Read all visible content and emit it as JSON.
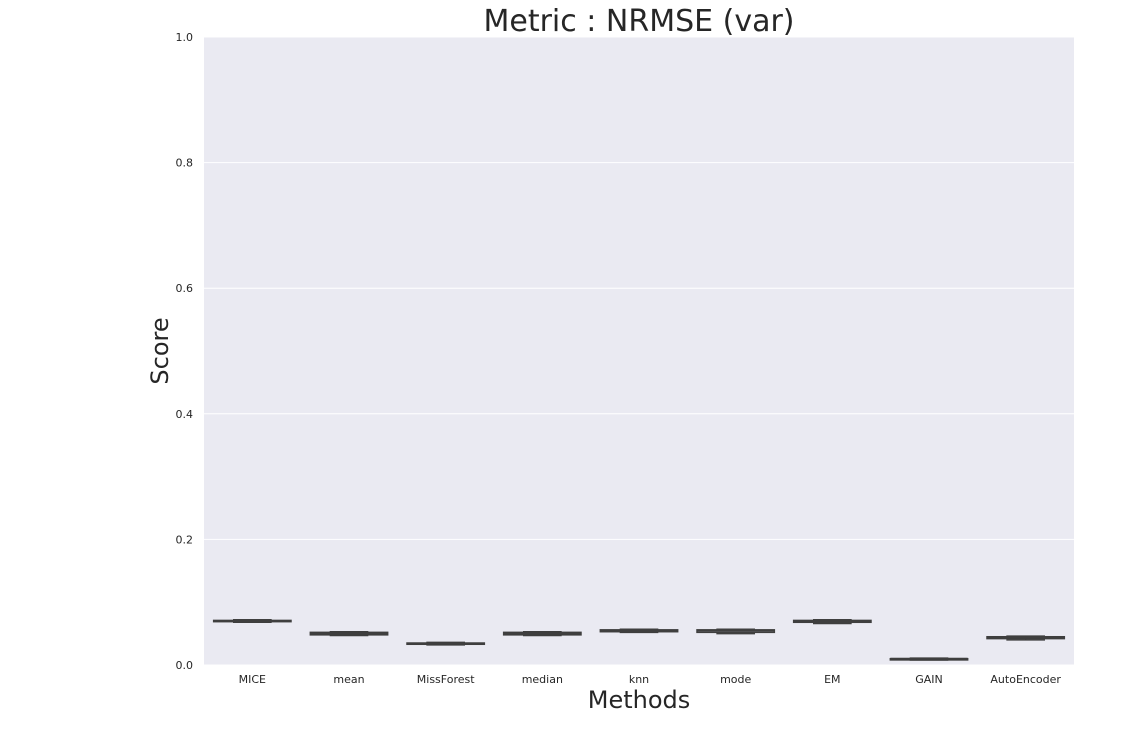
{
  "chart_data": {
    "type": "box",
    "title": "Metric : NRMSE (var)",
    "xlabel": "Methods",
    "ylabel": "Score",
    "ylim": [
      0.0,
      1.0
    ],
    "yticks": [
      "0.0",
      "0.2",
      "0.4",
      "0.6",
      "0.8",
      "1.0"
    ],
    "grid": true,
    "categories": [
      "MICE",
      "mean",
      "MissForest",
      "median",
      "knn",
      "mode",
      "EM",
      "GAIN",
      "AutoEncoder"
    ],
    "boxes": [
      {
        "min": 0.068,
        "q1": 0.069,
        "median": 0.07,
        "q3": 0.071,
        "max": 0.072
      },
      {
        "min": 0.047,
        "q1": 0.048,
        "median": 0.05,
        "q3": 0.052,
        "max": 0.053
      },
      {
        "min": 0.032,
        "q1": 0.033,
        "median": 0.034,
        "q3": 0.035,
        "max": 0.036
      },
      {
        "min": 0.047,
        "q1": 0.048,
        "median": 0.05,
        "q3": 0.052,
        "max": 0.053
      },
      {
        "min": 0.052,
        "q1": 0.053,
        "median": 0.055,
        "q3": 0.056,
        "max": 0.057
      },
      {
        "min": 0.05,
        "q1": 0.052,
        "median": 0.055,
        "q3": 0.056,
        "max": 0.057
      },
      {
        "min": 0.066,
        "q1": 0.068,
        "median": 0.07,
        "q3": 0.071,
        "max": 0.072
      },
      {
        "min": 0.008,
        "q1": 0.009,
        "median": 0.01,
        "q3": 0.01,
        "max": 0.011
      },
      {
        "min": 0.04,
        "q1": 0.042,
        "median": 0.044,
        "q3": 0.045,
        "max": 0.046
      }
    ],
    "colors": {
      "plot_background": "#eaeaf2",
      "grid": "#ffffff",
      "box_fill": "#dde3ee",
      "box_edge": "#3f3f3f",
      "text": "#262626"
    }
  }
}
